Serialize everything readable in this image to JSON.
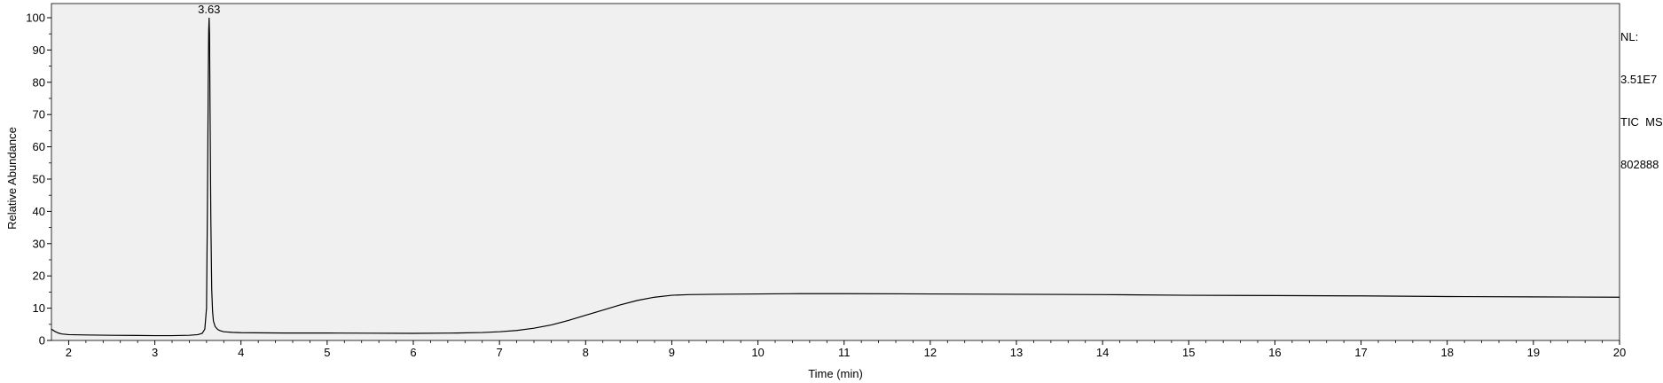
{
  "chart_data": {
    "type": "line",
    "xlabel": "Time (min)",
    "ylabel": "Relative Abundance",
    "xlim": [
      1.8,
      20
    ],
    "ylim": [
      0,
      100
    ],
    "x_ticks": [
      "2",
      "3",
      "4",
      "5",
      "6",
      "7",
      "8",
      "9",
      "10",
      "11",
      "12",
      "13",
      "14",
      "15",
      "16",
      "17",
      "18",
      "19",
      "20"
    ],
    "y_ticks": [
      "0",
      "10",
      "20",
      "30",
      "40",
      "50",
      "60",
      "70",
      "80",
      "90",
      "100"
    ],
    "peak_labels": [
      {
        "x": 3.63,
        "y": 100,
        "text": "3.63"
      }
    ],
    "series": [
      {
        "x": [
          1.8,
          1.84,
          1.88,
          1.92,
          1.96,
          2.0,
          2.2,
          2.5,
          2.8,
          3.0,
          3.2,
          3.4,
          3.5,
          3.55,
          3.58,
          3.6,
          3.61,
          3.62,
          3.625,
          3.63,
          3.635,
          3.64,
          3.65,
          3.66,
          3.67,
          3.68,
          3.7,
          3.73,
          3.76,
          3.8,
          3.9,
          4.0,
          4.5,
          5.0,
          5.5,
          6.0,
          6.5,
          6.8,
          7.0,
          7.2,
          7.4,
          7.6,
          7.8,
          8.0,
          8.2,
          8.4,
          8.6,
          8.8,
          9.0,
          9.2,
          9.5,
          10.0,
          10.5,
          11.0,
          12.0,
          13.0,
          14.0,
          15.0,
          16.0,
          17.0,
          18.0,
          19.0,
          20.0
        ],
        "y": [
          3.5,
          2.8,
          2.3,
          2.0,
          1.9,
          1.8,
          1.7,
          1.6,
          1.55,
          1.5,
          1.5,
          1.6,
          1.8,
          2.2,
          3.5,
          10,
          40,
          80,
          96,
          100,
          95,
          75,
          38,
          16,
          9,
          6,
          4.3,
          3.4,
          3.0,
          2.7,
          2.5,
          2.4,
          2.3,
          2.3,
          2.25,
          2.2,
          2.3,
          2.45,
          2.7,
          3.1,
          3.8,
          4.8,
          6.2,
          7.8,
          9.4,
          11.0,
          12.4,
          13.4,
          14.0,
          14.2,
          14.3,
          14.4,
          14.5,
          14.5,
          14.4,
          14.3,
          14.2,
          14.0,
          13.9,
          13.8,
          13.6,
          13.5,
          13.4
        ]
      }
    ]
  },
  "info": {
    "lines": [
      "NL:",
      "3.51E7",
      "TIC  MS",
      "802888"
    ]
  }
}
